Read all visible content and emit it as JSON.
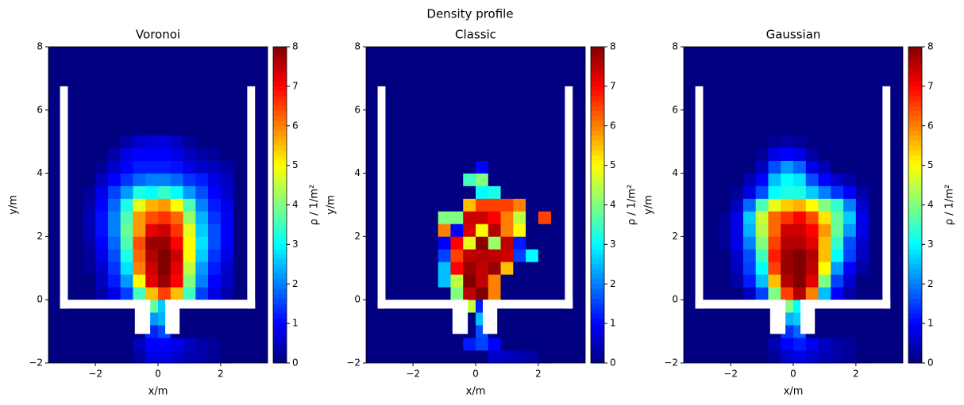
{
  "title": "Density profile",
  "chart_data": [
    {
      "type": "heatmap",
      "title": "Voronoi",
      "xlabel": "x/m",
      "ylabel": "y/m",
      "colormap": "jet",
      "colorbar": {
        "label": "ρ / 1/m²",
        "lim": [
          0,
          8
        ],
        "ticks": [
          0,
          1,
          2,
          3,
          4,
          5,
          6,
          7,
          8
        ]
      },
      "xlim": [
        -3.5,
        3.5
      ],
      "ylim": [
        -2,
        8
      ],
      "xticks": [
        {
          "value": -2,
          "label": "−2"
        },
        0,
        2
      ],
      "yticks": [
        {
          "value": -2,
          "label": "−2"
        },
        0,
        2,
        4,
        6,
        8
      ],
      "xbins": [
        -2.4,
        -2.0,
        -1.6,
        -1.2,
        -0.8,
        -0.4,
        0,
        0.4,
        0.8,
        1.2,
        1.6,
        2.0,
        2.4
      ],
      "ybins": [
        -2,
        -1.6,
        -1.2,
        -0.8,
        -0.4,
        0,
        0.4,
        0.8,
        1.2,
        1.6,
        2.0,
        2.4,
        2.8,
        3.2,
        3.6,
        4.0,
        4.4,
        4.8,
        5.2
      ],
      "z": [
        [
          0,
          0,
          0,
          0,
          0.3,
          0.8,
          0.8,
          0.6,
          0.4,
          0.3,
          0.2,
          0
        ],
        [
          0,
          0,
          0,
          0,
          0.5,
          1.0,
          1.0,
          0.8,
          0.5,
          0.3,
          0.2,
          0
        ],
        [
          0,
          0,
          0,
          0,
          0,
          1.3,
          1.6,
          0,
          0,
          0,
          0,
          0
        ],
        [
          0,
          0,
          0,
          0,
          0,
          2.2,
          2.4,
          0,
          0,
          0,
          0,
          0
        ],
        [
          0,
          0,
          0,
          0,
          0,
          3.8,
          2.6,
          0,
          0,
          0,
          0,
          0
        ],
        [
          0,
          0.3,
          0.8,
          1.5,
          3.5,
          5.5,
          6.5,
          5.5,
          3.5,
          1.5,
          0.8,
          0.3
        ],
        [
          0,
          0.5,
          1.2,
          2.2,
          5,
          7.2,
          7.8,
          7,
          4,
          2,
          1,
          0.5
        ],
        [
          0.2,
          0.6,
          1.4,
          2.8,
          6,
          7.4,
          8,
          7.2,
          4.5,
          2.2,
          1.2,
          0.6
        ],
        [
          0.2,
          0.8,
          1.6,
          3.2,
          6.2,
          7.6,
          8,
          7.4,
          5,
          2.6,
          1.4,
          0.8
        ],
        [
          0.3,
          1,
          1.8,
          3.6,
          6.4,
          7.8,
          7.8,
          7,
          5,
          2.8,
          1.6,
          1
        ],
        [
          0.4,
          1.1,
          2,
          3.8,
          5.8,
          7.2,
          7.4,
          6.6,
          4.8,
          2.6,
          1.6,
          1
        ],
        [
          0.4,
          1.1,
          2,
          3.6,
          5.8,
          6.4,
          6.6,
          6.2,
          4.2,
          2.4,
          1.4,
          0.9
        ],
        [
          0.3,
          1,
          1.8,
          3.2,
          4.8,
          5.6,
          5.8,
          5,
          3.6,
          2,
          1.2,
          0.8
        ],
        [
          0.2,
          0.8,
          1.5,
          2.2,
          3.2,
          3,
          3.4,
          3,
          2.2,
          1.6,
          1,
          0.6
        ],
        [
          0,
          0.5,
          1,
          1.4,
          1.8,
          2,
          2,
          1.8,
          1.4,
          1.2,
          0.8,
          0.5
        ],
        [
          0,
          0.2,
          0.6,
          1,
          1.2,
          1.2,
          1.2,
          1.1,
          0.8,
          0.6,
          0.5,
          0.3
        ],
        [
          0,
          0,
          0.3,
          0.8,
          1,
          1,
          1,
          0.8,
          0.5,
          0.3,
          0.2,
          0
        ],
        [
          0,
          0,
          0,
          0.3,
          0.6,
          0.7,
          0.7,
          0.5,
          0.2,
          0,
          0,
          0
        ]
      ]
    },
    {
      "type": "heatmap",
      "title": "Classic",
      "xlabel": "x/m",
      "ylabel": "y/m",
      "colormap": "jet",
      "colorbar": {
        "label": "ρ / 1/m²",
        "lim": [
          0,
          8
        ],
        "ticks": [
          0,
          1,
          2,
          3,
          4,
          5,
          6,
          7,
          8
        ]
      },
      "xlim": [
        -3.5,
        3.5
      ],
      "ylim": [
        -2,
        8
      ],
      "xticks": [
        {
          "value": -2,
          "label": "−2"
        },
        0,
        2
      ],
      "yticks": [
        {
          "value": -2,
          "label": "−2"
        },
        0,
        2,
        4,
        6,
        8
      ],
      "xbins": [
        -2.4,
        -2.0,
        -1.6,
        -1.2,
        -0.8,
        -0.4,
        0,
        0.4,
        0.8,
        1.2,
        1.6,
        2.0,
        2.4
      ],
      "ybins": [
        -2,
        -1.6,
        -1.2,
        -0.8,
        -0.4,
        0,
        0.4,
        0.8,
        1.2,
        1.6,
        2.0,
        2.4,
        2.8,
        3.2,
        3.6,
        4.0,
        4.4,
        4.8,
        5.2
      ],
      "z": [
        [
          0,
          0,
          0,
          0,
          0,
          0,
          0,
          0.6,
          0.5,
          0.4,
          0.3,
          0
        ],
        [
          0,
          0,
          0,
          0,
          0,
          1.2,
          1.5,
          1,
          0,
          0,
          0,
          0
        ],
        [
          0,
          0,
          0,
          0,
          0,
          0,
          1.6,
          0,
          0,
          0,
          0,
          0
        ],
        [
          0,
          0,
          0,
          0,
          0,
          0,
          2.5,
          0,
          0,
          0,
          0,
          0
        ],
        [
          0,
          0,
          0,
          0,
          0,
          4.5,
          1.2,
          0,
          0,
          0,
          0,
          0
        ],
        [
          0,
          0,
          0,
          0,
          4,
          7.5,
          8,
          6,
          0,
          0,
          0,
          0
        ],
        [
          0,
          0,
          0,
          2.5,
          4.5,
          8,
          7.5,
          6,
          0,
          0,
          0,
          0
        ],
        [
          0,
          0,
          0,
          2.5,
          7,
          7.8,
          7.5,
          7.8,
          5.5,
          0,
          0,
          0
        ],
        [
          0,
          0,
          0,
          1.5,
          6.5,
          7.5,
          7.6,
          7.5,
          7.4,
          1.5,
          3,
          0
        ],
        [
          0,
          0,
          0,
          1,
          7,
          4.8,
          7.9,
          4.2,
          7.5,
          1.2,
          0,
          0
        ],
        [
          0,
          0,
          0,
          6,
          1,
          7.3,
          5,
          7.6,
          6,
          5,
          0,
          0
        ],
        [
          0,
          0,
          0,
          4,
          4,
          7.4,
          7.4,
          7,
          6,
          4.5,
          0,
          6.5
        ],
        [
          0,
          0,
          0,
          0,
          0,
          5.5,
          6.5,
          6.5,
          6.5,
          6,
          0,
          0
        ],
        [
          0,
          0,
          0,
          0,
          0,
          0,
          3,
          3.2,
          0,
          0,
          0,
          0
        ],
        [
          0,
          0,
          0,
          0,
          0,
          3.5,
          4,
          0,
          0,
          0,
          0,
          0
        ],
        [
          0,
          0,
          0,
          0,
          0,
          0,
          1,
          0,
          0,
          0,
          0,
          0
        ],
        [
          0,
          0,
          0,
          0,
          0,
          0,
          0,
          0,
          0,
          0,
          0,
          0
        ],
        [
          0,
          0,
          0,
          0,
          0,
          0,
          0,
          0,
          0,
          0,
          0,
          0
        ]
      ]
    },
    {
      "type": "heatmap",
      "title": "Gaussian",
      "xlabel": "x/m",
      "ylabel": "y/m",
      "colormap": "jet",
      "colorbar": {
        "label": "ρ / 1/m²",
        "lim": [
          0,
          8
        ],
        "ticks": [
          0,
          1,
          2,
          3,
          4,
          5,
          6,
          7,
          8
        ]
      },
      "xlim": [
        -3.5,
        3.5
      ],
      "ylim": [
        -2,
        8
      ],
      "xticks": [
        {
          "value": -2,
          "label": "−2"
        },
        0,
        2
      ],
      "yticks": [
        {
          "value": -2,
          "label": "−2"
        },
        0,
        2,
        4,
        6,
        8
      ],
      "xbins": [
        -2.4,
        -2.0,
        -1.6,
        -1.2,
        -0.8,
        -0.4,
        0,
        0.4,
        0.8,
        1.2,
        1.6,
        2.0,
        2.4
      ],
      "ybins": [
        -2,
        -1.6,
        -1.2,
        -0.8,
        -0.4,
        0,
        0.4,
        0.8,
        1.2,
        1.6,
        2.0,
        2.4,
        2.8,
        3.2,
        3.6,
        4.0,
        4.4,
        4.8,
        5.2
      ],
      "z": [
        [
          0,
          0,
          0,
          0,
          0.2,
          0.6,
          0.8,
          0.6,
          0.4,
          0.3,
          0.2,
          0
        ],
        [
          0,
          0,
          0,
          0,
          0.4,
          1,
          1.2,
          0.9,
          0.5,
          0.3,
          0.2,
          0
        ],
        [
          0,
          0,
          0,
          0,
          0,
          1.4,
          1.8,
          0,
          0,
          0,
          0,
          0
        ],
        [
          0,
          0,
          0,
          0,
          0,
          2.4,
          2.6,
          0,
          0,
          0,
          0,
          0
        ],
        [
          0,
          0,
          0,
          0,
          0,
          4,
          3,
          0,
          0,
          0,
          0,
          0
        ],
        [
          0,
          0,
          0.5,
          1.5,
          4,
          6.5,
          7.6,
          6,
          2.5,
          1,
          0.3,
          0
        ],
        [
          0,
          0.3,
          1.2,
          2.5,
          5.5,
          7.6,
          8,
          7.2,
          4,
          1.5,
          0.6,
          0
        ],
        [
          0,
          0.5,
          1.5,
          3,
          6.5,
          7.8,
          8,
          7.5,
          5,
          2.2,
          1,
          0.3
        ],
        [
          0,
          0.6,
          1.6,
          3.5,
          6.8,
          7.8,
          8,
          7.6,
          5.5,
          3,
          1.5,
          0.5
        ],
        [
          0.2,
          0.8,
          2,
          4,
          6.5,
          7.6,
          7.6,
          7.2,
          5.5,
          3.4,
          1.6,
          0.6
        ],
        [
          0.2,
          0.8,
          2.4,
          4.4,
          6.2,
          7.4,
          7.4,
          7,
          5.8,
          3.8,
          2.2,
          0.8
        ],
        [
          0.2,
          0.8,
          2.6,
          4.6,
          6.2,
          6.6,
          7,
          6.4,
          5.2,
          3.8,
          2.6,
          0.8
        ],
        [
          0,
          0.5,
          1.8,
          3.6,
          4.8,
          5.4,
          5.6,
          5,
          4,
          3.4,
          2,
          0.6
        ],
        [
          0,
          0.2,
          0.8,
          1.6,
          3,
          3.2,
          3.2,
          2.6,
          2,
          1.4,
          1,
          0.3
        ],
        [
          0,
          0,
          0.4,
          1,
          2.5,
          3,
          2.8,
          1.6,
          1,
          0.6,
          0.3,
          0
        ],
        [
          0,
          0,
          0,
          0.5,
          1.6,
          2.2,
          1.8,
          0.8,
          0.4,
          0,
          0,
          0
        ],
        [
          0,
          0,
          0,
          0.2,
          0.8,
          1,
          0.8,
          0.3,
          0,
          0,
          0,
          0
        ],
        [
          0,
          0,
          0,
          0,
          0.2,
          0.3,
          0.2,
          0,
          0,
          0,
          0,
          0
        ]
      ]
    }
  ]
}
